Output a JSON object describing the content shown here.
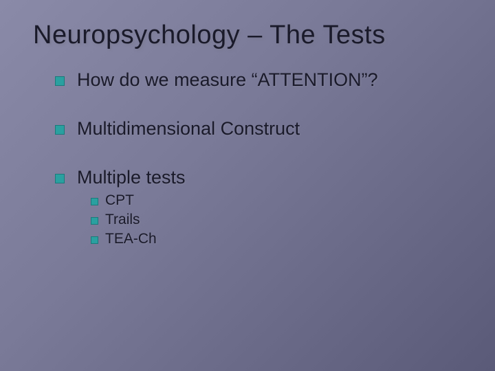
{
  "background_gradient": [
    "#8a8aa8",
    "#7a7a98",
    "#6a6a88",
    "#5a5a78"
  ],
  "bullet_color": "#2aa0a0",
  "text_color": "#1a1a2a",
  "title": "Neuropsychology – The Tests",
  "title_fontsize": 38,
  "body_fontsize": 27,
  "sub_fontsize": 21,
  "bullets": [
    {
      "text": "How do we measure “ATTENTION”?"
    },
    {
      "text": "Multidimensional Construct"
    },
    {
      "text": "Multiple tests"
    }
  ],
  "sub_bullets": [
    {
      "text": "CPT"
    },
    {
      "text": "Trails"
    },
    {
      "text": "TEA-Ch"
    }
  ]
}
